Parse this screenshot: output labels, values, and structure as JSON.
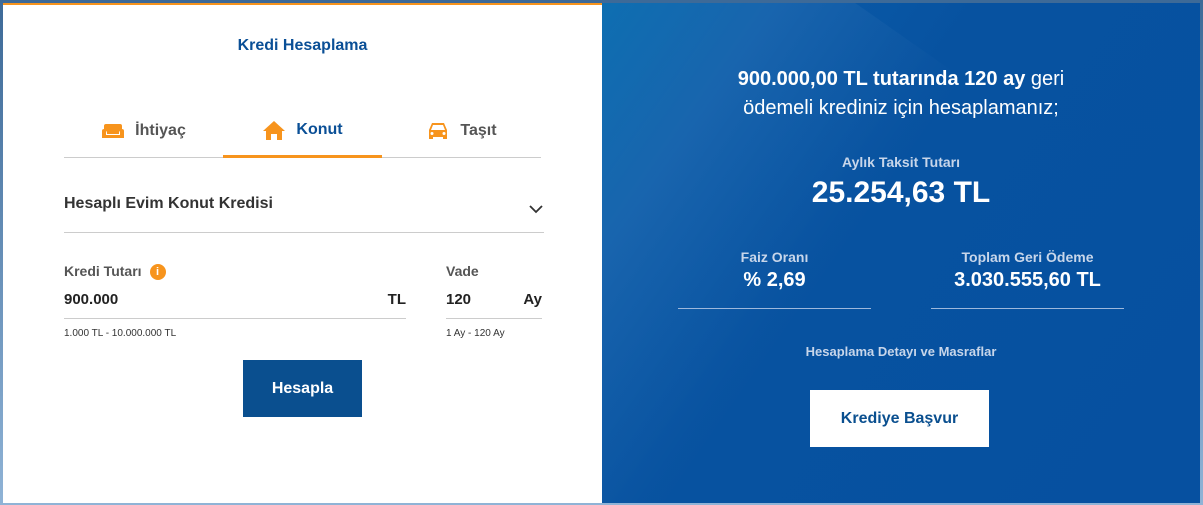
{
  "calculator": {
    "title": "Kredi Hesaplama",
    "tabs": [
      {
        "label": "İhtiyaç",
        "icon": "sofa-icon"
      },
      {
        "label": "Konut",
        "icon": "home-icon",
        "active": true
      },
      {
        "label": "Taşıt",
        "icon": "car-icon"
      }
    ],
    "product": "Hesaplı Evim Konut Kredisi",
    "amount": {
      "label": "Kredi Tutarı",
      "value": "900.000",
      "unit": "TL",
      "hint": "1.000 TL - 10.000.000 TL"
    },
    "term": {
      "label": "Vade",
      "value": "120",
      "unit": "Ay",
      "hint": "1 Ay - 120 Ay"
    },
    "calculate": "Hesapla"
  },
  "result": {
    "headline_bold": "900.000,00 TL tutarında 120 ay",
    "headline_rest1": " geri",
    "headline_rest2": "ödemeli krediniz için hesaplamanız;",
    "monthly_label": "Aylık Taksit Tutarı",
    "monthly_value": "25.254,63 TL",
    "rate_label": "Faiz Oranı",
    "rate_value": "% 2,69",
    "total_label": "Toplam Geri Ödeme",
    "total_value": "3.030.555,60 TL",
    "details_link": "Hesaplama Detayı ve Masraflar",
    "apply": "Krediye Başvur"
  },
  "colors": {
    "accent": "#f7941d",
    "brand": "#0a4f96"
  }
}
